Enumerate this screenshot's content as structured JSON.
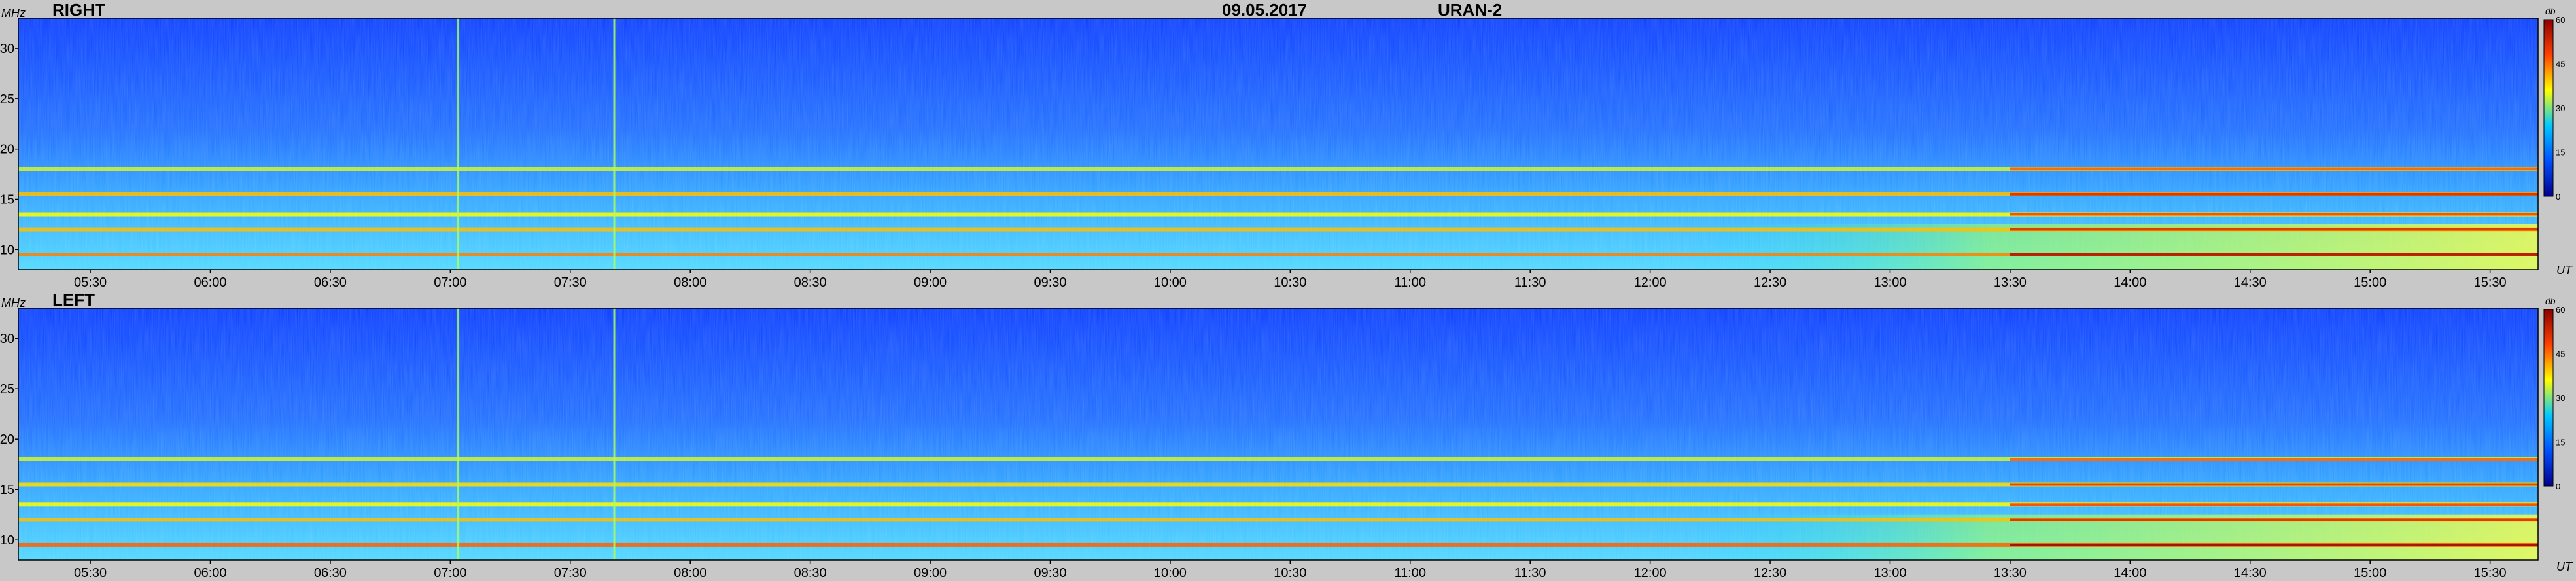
{
  "header": {
    "date": "09.05.2017",
    "instrument": "URAN-2"
  },
  "panels": [
    {
      "label": "RIGHT"
    },
    {
      "label": "LEFT"
    }
  ],
  "axes": {
    "y_unit": "MHz",
    "x_unit": "UT",
    "cbar_unit": "db"
  },
  "colorbar": {
    "ticks": [
      0,
      15,
      30,
      45,
      60
    ],
    "colors": [
      "#00008c",
      "#0050ff",
      "#00c8ff",
      "#ffff00",
      "#ff4000",
      "#8c0000"
    ]
  },
  "chart_data": [
    {
      "type": "heatmap",
      "title": "RIGHT",
      "xlabel": "UT",
      "ylabel": "MHz",
      "x_ticks": [
        "05:30",
        "06:00",
        "06:30",
        "07:00",
        "07:30",
        "08:00",
        "08:30",
        "09:00",
        "09:30",
        "10:00",
        "10:30",
        "11:00",
        "11:30",
        "12:00",
        "12:30",
        "13:00",
        "13:30",
        "14:00",
        "14:30",
        "15:00",
        "15:30"
      ],
      "y_ticks": [
        10,
        15,
        20,
        25,
        30
      ],
      "xlim": [
        "05:12",
        "15:42"
      ],
      "ylim": [
        8,
        33
      ],
      "colorbar_range_db": [
        0,
        60
      ],
      "bands_mhz": [
        {
          "freq": 9.5,
          "level_db": 44,
          "note": "strong lower band, red after 13:30"
        },
        {
          "freq": 12.0,
          "level_db": 40
        },
        {
          "freq": 13.5,
          "level_db": 36
        },
        {
          "freq": 15.5,
          "level_db": 40
        },
        {
          "freq": 18.0,
          "level_db": 34
        }
      ],
      "vertical_lines_ut": [
        "07:02",
        "07:41"
      ]
    },
    {
      "type": "heatmap",
      "title": "LEFT",
      "xlabel": "UT",
      "ylabel": "MHz",
      "x_ticks": [
        "05:30",
        "06:00",
        "06:30",
        "07:00",
        "07:30",
        "08:00",
        "08:30",
        "09:00",
        "09:30",
        "10:00",
        "10:30",
        "11:00",
        "11:30",
        "12:00",
        "12:30",
        "13:00",
        "13:30",
        "14:00",
        "14:30",
        "15:00",
        "15:30"
      ],
      "y_ticks": [
        10,
        15,
        20,
        25,
        30
      ],
      "xlim": [
        "05:12",
        "15:42"
      ],
      "ylim": [
        8,
        33
      ],
      "colorbar_range_db": [
        0,
        60
      ],
      "bands_mhz": [
        {
          "freq": 9.5,
          "level_db": 46,
          "note": "strong lower band, red after 13:30"
        },
        {
          "freq": 12.0,
          "level_db": 40
        },
        {
          "freq": 13.5,
          "level_db": 36
        },
        {
          "freq": 15.5,
          "level_db": 38
        },
        {
          "freq": 18.0,
          "level_db": 34
        }
      ],
      "vertical_lines_ut": [
        "07:02",
        "07:41"
      ]
    }
  ]
}
